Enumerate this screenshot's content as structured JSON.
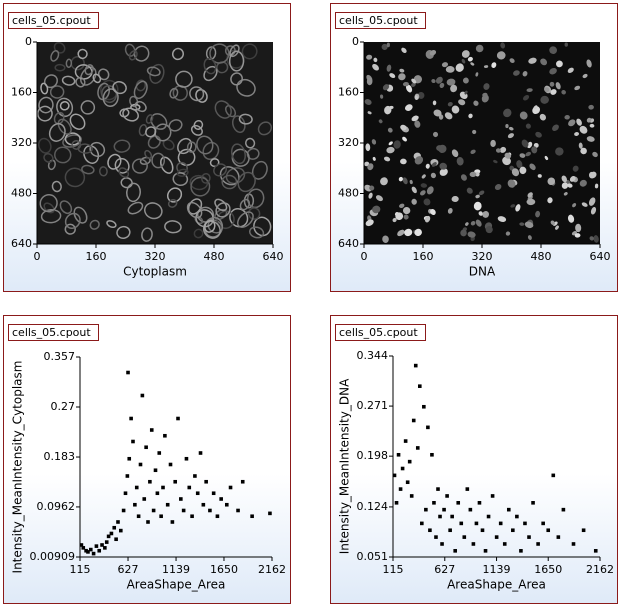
{
  "chart_data": [
    {
      "type": "image",
      "title": "cells_05.cpout",
      "xlabel": "Cytoplasm",
      "xlim": [
        0,
        640
      ],
      "ylim": [
        640,
        0
      ],
      "xticks": [
        0,
        160,
        320,
        480,
        640
      ],
      "yticks": [
        0,
        160,
        320,
        480,
        640
      ]
    },
    {
      "type": "image",
      "title": "cells_05.cpout",
      "xlabel": "DNA",
      "xlim": [
        0,
        640
      ],
      "ylim": [
        640,
        0
      ],
      "xticks": [
        0,
        160,
        320,
        480,
        640
      ],
      "yticks": [
        0,
        160,
        320,
        480,
        640
      ]
    },
    {
      "type": "scatter",
      "title": "cells_05.cpout",
      "xlabel": "AreaShape_Area",
      "ylabel": "Intensity_MeanIntensity_Cytoplasm",
      "color": "#000000",
      "xlim": [
        115,
        2162
      ],
      "ylim": [
        0.00909,
        0.357
      ],
      "xticks": [
        115,
        627,
        1139,
        1650,
        2162
      ],
      "yticks": [
        0.00909,
        0.0962,
        0.183,
        0.27,
        0.357
      ],
      "x": [
        130,
        150,
        180,
        200,
        230,
        260,
        290,
        320,
        350,
        380,
        400,
        420,
        450,
        480,
        500,
        520,
        550,
        580,
        600,
        620,
        627,
        640,
        660,
        680,
        700,
        720,
        740,
        760,
        780,
        800,
        820,
        840,
        860,
        880,
        900,
        920,
        940,
        960,
        980,
        1000,
        1020,
        1050,
        1080,
        1100,
        1130,
        1160,
        1190,
        1220,
        1250,
        1280,
        1310,
        1340,
        1370,
        1400,
        1430,
        1460,
        1500,
        1540,
        1580,
        1620,
        1680,
        1720,
        1800,
        1850,
        1950,
        2140
      ],
      "values": [
        0.03,
        0.025,
        0.02,
        0.018,
        0.022,
        0.015,
        0.028,
        0.02,
        0.03,
        0.025,
        0.035,
        0.045,
        0.05,
        0.06,
        0.04,
        0.07,
        0.055,
        0.09,
        0.12,
        0.15,
        0.33,
        0.18,
        0.25,
        0.21,
        0.1,
        0.13,
        0.08,
        0.17,
        0.29,
        0.11,
        0.2,
        0.07,
        0.14,
        0.23,
        0.09,
        0.16,
        0.12,
        0.19,
        0.08,
        0.13,
        0.22,
        0.1,
        0.17,
        0.07,
        0.14,
        0.25,
        0.11,
        0.09,
        0.18,
        0.13,
        0.08,
        0.15,
        0.12,
        0.19,
        0.1,
        0.14,
        0.09,
        0.12,
        0.08,
        0.11,
        0.1,
        0.13,
        0.09,
        0.14,
        0.08,
        0.085
      ]
    },
    {
      "type": "scatter",
      "title": "cells_05.cpout",
      "xlabel": "AreaShape_Area",
      "ylabel": "Intensity_MeanIntensity_DNA",
      "color": "#000000",
      "xlim": [
        115,
        2162
      ],
      "ylim": [
        0.051,
        0.344
      ],
      "xticks": [
        115,
        627,
        1139,
        1650,
        2162
      ],
      "yticks": [
        0.051,
        0.124,
        0.198,
        0.271,
        0.344
      ],
      "x": [
        130,
        150,
        170,
        190,
        210,
        240,
        260,
        280,
        300,
        320,
        340,
        360,
        380,
        400,
        420,
        440,
        460,
        480,
        500,
        520,
        540,
        560,
        580,
        600,
        620,
        650,
        680,
        700,
        730,
        760,
        790,
        820,
        850,
        880,
        910,
        940,
        970,
        1000,
        1030,
        1060,
        1100,
        1140,
        1180,
        1220,
        1260,
        1300,
        1340,
        1380,
        1420,
        1460,
        1500,
        1550,
        1600,
        1650,
        1700,
        1750,
        1800,
        1900,
        2000,
        2120
      ],
      "values": [
        0.17,
        0.13,
        0.2,
        0.15,
        0.18,
        0.22,
        0.16,
        0.19,
        0.14,
        0.25,
        0.33,
        0.21,
        0.3,
        0.1,
        0.27,
        0.12,
        0.24,
        0.09,
        0.2,
        0.13,
        0.08,
        0.15,
        0.11,
        0.07,
        0.12,
        0.14,
        0.09,
        0.11,
        0.06,
        0.13,
        0.1,
        0.08,
        0.15,
        0.12,
        0.07,
        0.1,
        0.13,
        0.09,
        0.06,
        0.11,
        0.14,
        0.08,
        0.1,
        0.07,
        0.12,
        0.09,
        0.11,
        0.06,
        0.1,
        0.08,
        0.13,
        0.07,
        0.1,
        0.09,
        0.17,
        0.08,
        0.12,
        0.07,
        0.09,
        0.06
      ]
    }
  ]
}
